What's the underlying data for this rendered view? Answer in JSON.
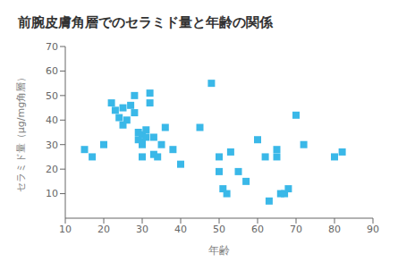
{
  "chart_data": {
    "type": "scatter",
    "title": "前腕皮膚角層でのセラミド量と年齢の関係",
    "xlabel": "年齢",
    "ylabel": "セラミド量（μg/mg角層）",
    "x": [
      15,
      17,
      20,
      22,
      23,
      24,
      25,
      25,
      26,
      27,
      28,
      28,
      29,
      29,
      30,
      30,
      30,
      30,
      31,
      31,
      32,
      32,
      33,
      33,
      34,
      35,
      36,
      38,
      40,
      45,
      48,
      50,
      50,
      51,
      52,
      53,
      55,
      57,
      60,
      62,
      63,
      65,
      65,
      66,
      67,
      68,
      70,
      72,
      80,
      82
    ],
    "values": [
      28,
      25,
      30,
      47,
      44,
      41,
      45,
      38,
      40,
      46,
      50,
      43,
      32,
      35,
      34,
      31,
      30,
      25,
      33,
      36,
      51,
      47,
      33,
      26,
      25,
      30,
      37,
      28,
      22,
      37,
      55,
      25,
      19,
      12,
      10,
      27,
      19,
      15,
      32,
      25,
      7,
      28,
      25,
      10,
      10,
      12,
      42,
      30,
      25,
      27
    ],
    "color": "#3ab8e8",
    "marker": "square",
    "xlim": [
      10,
      90
    ],
    "ylim": [
      0,
      70
    ],
    "xticks": [
      10,
      20,
      30,
      40,
      50,
      60,
      70,
      80,
      90
    ],
    "yticks": [
      10,
      20,
      30,
      40,
      50,
      60,
      70
    ],
    "grid": false
  }
}
